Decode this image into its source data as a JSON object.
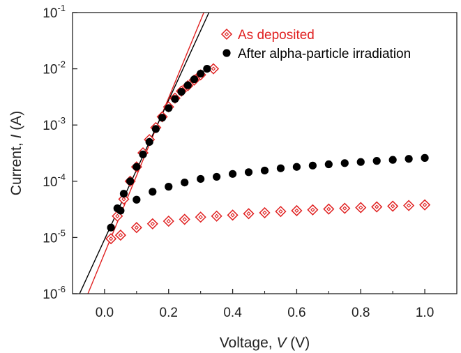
{
  "chart_data": {
    "type": "scatter",
    "xlabel_prefix": "Voltage, ",
    "xlabel_var": "V",
    "xlabel_unit": " (V)",
    "ylabel_prefix": "Current, ",
    "ylabel_var": "I",
    "ylabel_unit": " (A)",
    "xlim": [
      -0.1,
      1.1
    ],
    "ylim": [
      1e-06,
      0.1
    ],
    "yscale": "log",
    "x_ticks": [
      {
        "value": 0.0,
        "label": "0.0"
      },
      {
        "value": 0.2,
        "label": "0.2"
      },
      {
        "value": 0.4,
        "label": "0.4"
      },
      {
        "value": 0.6,
        "label": "0.6"
      },
      {
        "value": 0.8,
        "label": "0.8"
      },
      {
        "value": 1.0,
        "label": "1.0"
      }
    ],
    "y_ticks": [
      {
        "value": 1e-06,
        "base": "10",
        "exp": "-6"
      },
      {
        "value": 1e-05,
        "base": "10",
        "exp": "-5"
      },
      {
        "value": 0.0001,
        "base": "10",
        "exp": "-4"
      },
      {
        "value": 0.001,
        "base": "10",
        "exp": "-3"
      },
      {
        "value": 0.01,
        "base": "10",
        "exp": "-2"
      },
      {
        "value": 0.1,
        "base": "10",
        "exp": "-1"
      }
    ],
    "grid": false,
    "legend_position": "top-right",
    "series": [
      {
        "name": "As deposited",
        "marker": "diamond-open",
        "color": "#e02020",
        "points": [
          [
            0.02,
            9.5e-06
          ],
          [
            0.05,
            1.1e-05
          ],
          [
            0.1,
            1.5e-05
          ],
          [
            0.15,
            1.75e-05
          ],
          [
            0.2,
            1.95e-05
          ],
          [
            0.25,
            2.1e-05
          ],
          [
            0.3,
            2.3e-05
          ],
          [
            0.35,
            2.4e-05
          ],
          [
            0.4,
            2.5e-05
          ],
          [
            0.45,
            2.65e-05
          ],
          [
            0.5,
            2.75e-05
          ],
          [
            0.55,
            2.9e-05
          ],
          [
            0.6,
            3e-05
          ],
          [
            0.65,
            3.1e-05
          ],
          [
            0.7,
            3.2e-05
          ],
          [
            0.75,
            3.3e-05
          ],
          [
            0.8,
            3.4e-05
          ],
          [
            0.85,
            3.5e-05
          ],
          [
            0.9,
            3.6e-05
          ],
          [
            0.95,
            3.7e-05
          ],
          [
            1.0,
            3.8e-05
          ],
          [
            0.04,
            2.4e-05
          ],
          [
            0.06,
            4.8e-05
          ],
          [
            0.08,
            0.0001
          ],
          [
            0.1,
            0.00018
          ],
          [
            0.12,
            0.00032
          ],
          [
            0.14,
            0.00055
          ],
          [
            0.16,
            0.0009
          ],
          [
            0.18,
            0.0014
          ],
          [
            0.2,
            0.0021
          ],
          [
            0.22,
            0.003
          ],
          [
            0.24,
            0.004
          ],
          [
            0.26,
            0.005
          ],
          [
            0.28,
            0.0063
          ],
          [
            0.3,
            0.0078
          ],
          [
            0.34,
            0.01
          ]
        ]
      },
      {
        "name": "After alpha-particle irradiation",
        "marker": "circle-filled",
        "color": "#000000",
        "points": [
          [
            0.02,
            1.5e-05
          ],
          [
            0.04,
            3.3e-05
          ],
          [
            0.05,
            3e-05
          ],
          [
            0.06,
            6e-05
          ],
          [
            0.08,
            0.0001
          ],
          [
            0.1,
            0.00018
          ],
          [
            0.12,
            0.0003
          ],
          [
            0.14,
            0.0005
          ],
          [
            0.16,
            0.00085
          ],
          [
            0.18,
            0.00135
          ],
          [
            0.2,
            0.002
          ],
          [
            0.22,
            0.0029
          ],
          [
            0.24,
            0.0039
          ],
          [
            0.26,
            0.0051
          ],
          [
            0.28,
            0.0065
          ],
          [
            0.3,
            0.0082
          ],
          [
            0.32,
            0.01
          ],
          [
            0.1,
            4.7e-05
          ],
          [
            0.15,
            6.5e-05
          ],
          [
            0.2,
            8e-05
          ],
          [
            0.25,
            9.5e-05
          ],
          [
            0.3,
            0.00011
          ],
          [
            0.35,
            0.00012
          ],
          [
            0.4,
            0.000135
          ],
          [
            0.45,
            0.000145
          ],
          [
            0.5,
            0.000155
          ],
          [
            0.55,
            0.00017
          ],
          [
            0.6,
            0.00018
          ],
          [
            0.65,
            0.00019
          ],
          [
            0.7,
            0.0002
          ],
          [
            0.75,
            0.00021
          ],
          [
            0.8,
            0.00022
          ],
          [
            0.85,
            0.00023
          ],
          [
            0.9,
            0.00024
          ],
          [
            0.95,
            0.00025
          ],
          [
            1.0,
            0.00026
          ]
        ]
      }
    ],
    "fit_lines": [
      {
        "color": "#e02020",
        "from": [
          -0.052,
          1e-06
        ],
        "to": [
          0.31,
          0.1
        ]
      },
      {
        "color": "#000000",
        "from": [
          -0.078,
          1e-06
        ],
        "to": [
          0.326,
          0.1
        ]
      }
    ]
  }
}
